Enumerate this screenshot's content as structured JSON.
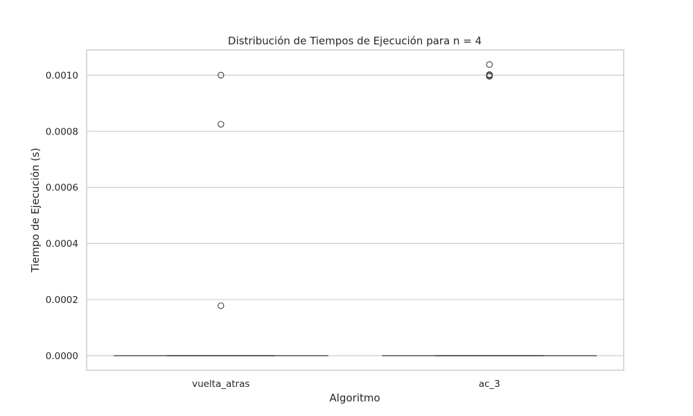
{
  "chart_data": {
    "type": "box",
    "title": "Distribución de Tiempos de Ejecución para n = 4",
    "xlabel": "Algoritmo",
    "ylabel": "Tiempo de Ejecución (s)",
    "categories": [
      "vuelta_atras",
      "ac_3"
    ],
    "ylim": [
      -5.2e-05,
      0.00109
    ],
    "yticks": [
      "0.0000",
      "0.0002",
      "0.0004",
      "0.0006",
      "0.0008",
      "0.0010"
    ],
    "ytick_values": [
      0,
      0.0002,
      0.0004,
      0.0006,
      0.0008,
      0.001
    ],
    "grid": "horizontal",
    "boxes": [
      {
        "category": "vuelta_atras",
        "min": 0,
        "q1": 0,
        "median": 0,
        "q3": 0,
        "max": 0,
        "outliers": [
          0.001,
          0.000825,
          0.000178
        ]
      },
      {
        "category": "ac_3",
        "min": 0,
        "q1": 0,
        "median": 0,
        "q3": 0,
        "max": 0,
        "outliers": [
          0.001038,
          0.001002,
          0.000999,
          0.000996
        ]
      }
    ],
    "colors": {
      "grid": "#cccccc",
      "frame": "#cccccc",
      "box": "#555555",
      "text": "#262626"
    }
  }
}
